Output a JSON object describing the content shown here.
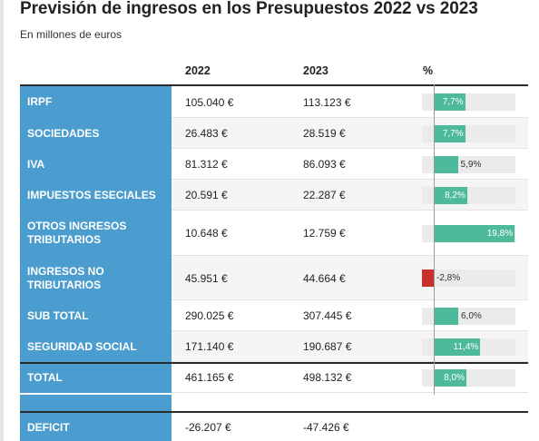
{
  "header": {
    "title": "Previsión de ingresos en los Presupuestos 2022 vs 2023",
    "subtitle": "En millones de euros"
  },
  "columns": {
    "c2022": "2022",
    "c2023": "2023",
    "pct": "%"
  },
  "colors": {
    "label_bg": "#4a9dce",
    "positive_bar": "#4cba9b",
    "negative_bar": "#c8302c",
    "track": "#ebebeb"
  },
  "chart_data": {
    "type": "table",
    "rows": [
      {
        "label": "IRPF",
        "v2022": "105.040 €",
        "v2023": "113.123 €",
        "pct": 7.7,
        "pct_label": "7,7%"
      },
      {
        "label": "SOCIEDADES",
        "v2022": "26.483 €",
        "v2023": "28.519 €",
        "pct": 7.7,
        "pct_label": "7,7%"
      },
      {
        "label": "IVA",
        "v2022": "81.312 €",
        "v2023": "86.093 €",
        "pct": 5.9,
        "pct_label": "5,9%"
      },
      {
        "label": "IMPUESTOS ESECIALES",
        "v2022": "20.591 €",
        "v2023": "22.287 €",
        "pct": 8.2,
        "pct_label": "8,2%"
      },
      {
        "label": "OTROS INGRESOS TRIBUTARIOS",
        "v2022": "10.648 €",
        "v2023": "12.759 €",
        "pct": 19.8,
        "pct_label": "19,8%"
      },
      {
        "label": "INGRESOS NO TRIBUTARIOS",
        "v2022": "45.951 €",
        "v2023": "44.664 €",
        "pct": -2.8,
        "pct_label": "-2,8%"
      },
      {
        "label": "SUB TOTAL",
        "v2022": "290.025 €",
        "v2023": "307.445 €",
        "pct": 6.0,
        "pct_label": "6,0%"
      },
      {
        "label": "SEGURIDAD SOCIAL",
        "v2022": "171.140 €",
        "v2023": "190.687 €",
        "pct": 11.4,
        "pct_label": "11,4%"
      },
      {
        "label": "TOTAL",
        "v2022": "461.165 €",
        "v2023": "498.132 €",
        "pct": 8.0,
        "pct_label": "8,0%"
      }
    ],
    "deficit": {
      "label": "DEFICIT",
      "v2022": "-26.207 €",
      "v2023": "-47.426 €"
    },
    "pct_range": [
      -3,
      20
    ]
  }
}
